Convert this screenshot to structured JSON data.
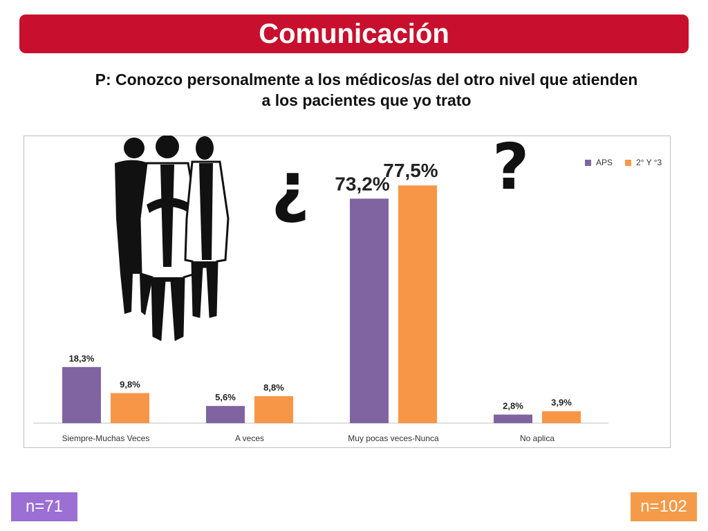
{
  "banner": {
    "title": "Comunicación"
  },
  "question": {
    "line1": "P: Conozco personalmente a los médicos/as del otro nivel que atienden",
    "line2": "a los pacientes que yo trato"
  },
  "decorations": {
    "open_question": "¿",
    "close_question": "?",
    "illustration": "doctor-silhouettes-icon"
  },
  "badges": {
    "left": "n=71",
    "right": "n=102"
  },
  "colors": {
    "banner": "#c8102e",
    "aps": "#8064a2",
    "second": "#f79646",
    "badge_left": "#9b6fd3",
    "badge_right": "#f59a48"
  },
  "chart_data": {
    "type": "bar",
    "categories": [
      "Siempre-Muchas Veces",
      "A veces",
      "Muy pocas veces-Nunca",
      "No aplica"
    ],
    "series": [
      {
        "name": "APS",
        "values": [
          18.3,
          5.6,
          73.2,
          2.8
        ],
        "labels": [
          "18,3%",
          "5,6%",
          "73,2%",
          "2,8%"
        ]
      },
      {
        "name": "2° Y °3",
        "values": [
          9.8,
          8.8,
          77.5,
          3.9
        ],
        "labels": [
          "9,8%",
          "8,8%",
          "77,5%",
          "3,9%"
        ]
      }
    ],
    "ylim": [
      0,
      78
    ],
    "grid": false,
    "legend": "top-right"
  }
}
